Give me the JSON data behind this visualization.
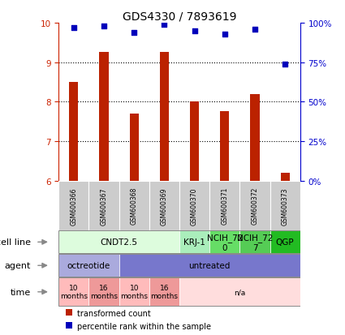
{
  "title": "GDS4330 / 7893619",
  "samples": [
    "GSM600366",
    "GSM600367",
    "GSM600368",
    "GSM600369",
    "GSM600370",
    "GSM600371",
    "GSM600372",
    "GSM600373"
  ],
  "transformed_counts": [
    8.5,
    9.25,
    7.7,
    9.25,
    8.0,
    7.75,
    8.2,
    6.2
  ],
  "percentile_ranks": [
    97,
    98,
    94,
    99,
    95,
    93,
    96,
    74
  ],
  "ylim_left": [
    6,
    10
  ],
  "ylim_right": [
    0,
    100
  ],
  "yticks_left": [
    6,
    7,
    8,
    9,
    10
  ],
  "yticks_right": [
    0,
    25,
    50,
    75,
    100
  ],
  "ytick_labels_right": [
    "0%",
    "25%",
    "50%",
    "75%",
    "100%"
  ],
  "bar_color": "#bb2200",
  "dot_color": "#0000bb",
  "cell_line_segments": [
    {
      "text": "CNDT2.5",
      "start": 0,
      "end": 4,
      "color": "#ddfcdd"
    },
    {
      "text": "KRJ-1",
      "start": 4,
      "end": 5,
      "color": "#aaeebb"
    },
    {
      "text": "NCIH_72\n0",
      "start": 5,
      "end": 6,
      "color": "#66dd66"
    },
    {
      "text": "NCIH_72\n7",
      "start": 6,
      "end": 7,
      "color": "#55cc55"
    },
    {
      "text": "QGP",
      "start": 7,
      "end": 8,
      "color": "#22bb22"
    }
  ],
  "agent_segments": [
    {
      "text": "octreotide",
      "start": 0,
      "end": 2,
      "color": "#aaaadd"
    },
    {
      "text": "untreated",
      "start": 2,
      "end": 8,
      "color": "#7777cc"
    }
  ],
  "time_segments": [
    {
      "text": "10\nmonths",
      "start": 0,
      "end": 1,
      "color": "#ffbbbb"
    },
    {
      "text": "16\nmonths",
      "start": 1,
      "end": 2,
      "color": "#ee9999"
    },
    {
      "text": "10\nmonths",
      "start": 2,
      "end": 3,
      "color": "#ffbbbb"
    },
    {
      "text": "16\nmonths",
      "start": 3,
      "end": 4,
      "color": "#ee9999"
    },
    {
      "text": "n/a",
      "start": 4,
      "end": 8,
      "color": "#ffdddd"
    }
  ],
  "left_axis_color": "#cc2200",
  "right_axis_color": "#0000cc",
  "legend_items": [
    {
      "color": "#bb2200",
      "label": "transformed count"
    },
    {
      "color": "#0000bb",
      "label": "percentile rank within the sample"
    }
  ],
  "gsm_bg": "#cccccc",
  "row_label_fontsize": 8,
  "annot_fontsize": 7.5,
  "gsm_fontsize": 5.5
}
